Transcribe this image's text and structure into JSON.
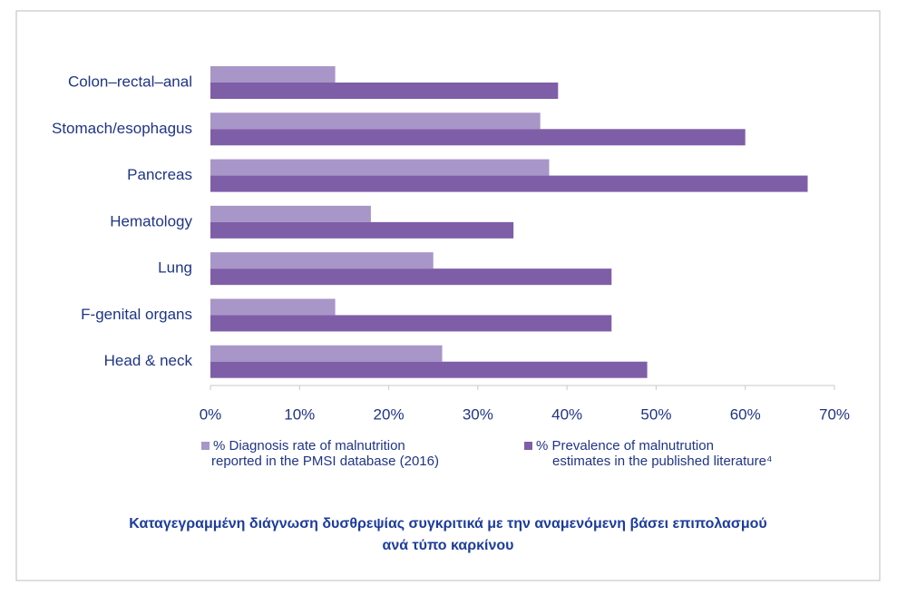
{
  "chart_data": {
    "type": "bar",
    "orientation": "horizontal",
    "categories": [
      "Colon–rectal–anal",
      "Stomach/esophagus",
      "Pancreas",
      "Hematology",
      "Lung",
      "F-genital organs",
      "Head & neck"
    ],
    "series": [
      {
        "name": "% Diagnosis rate of malnutrition reported in the PMSI database (2016)",
        "color": "#a896c8",
        "values": [
          14,
          37,
          38,
          18,
          25,
          14,
          26
        ]
      },
      {
        "name": "% Prevalence of malnutrution estimates in the published literature⁴",
        "color": "#7f5ea8",
        "values": [
          39,
          60,
          67,
          34,
          45,
          45,
          49
        ]
      }
    ],
    "xlim": [
      0,
      70
    ],
    "xticks": [
      {
        "value": 0,
        "label": "0%"
      },
      {
        "value": 10,
        "label": "10%"
      },
      {
        "value": 20,
        "label": "20%"
      },
      {
        "value": 30,
        "label": "30%"
      },
      {
        "value": 40,
        "label": "40%"
      },
      {
        "value": 50,
        "label": "50%"
      },
      {
        "value": 60,
        "label": "60%"
      },
      {
        "value": 70,
        "label": "70%"
      }
    ],
    "grid": false,
    "caption": [
      "Καταγεγραμμένη διάγνωση δυσθρεψίας συγκριτικά με την αναμενόμενη βάσει επιπολασμού",
      "ανά τύπο καρκίνου"
    ]
  }
}
